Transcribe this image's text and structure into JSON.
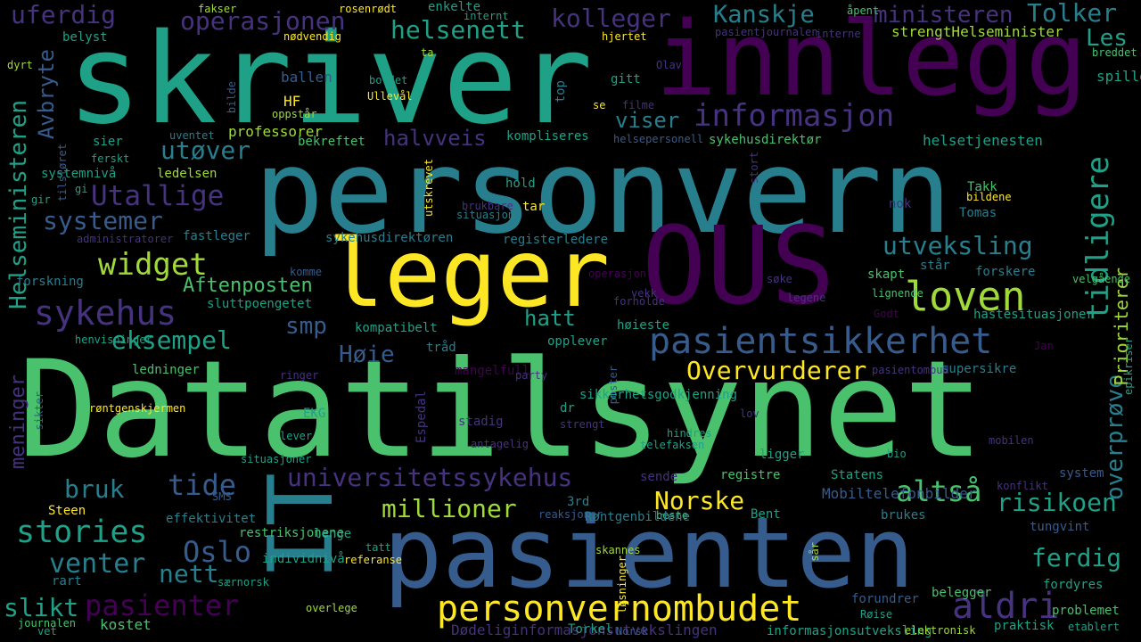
{
  "colors": {
    "background": "#000000",
    "viridis": [
      "#440154",
      "#46327e",
      "#365c8d",
      "#277f8e",
      "#1fa187",
      "#4ac16d",
      "#a0da39",
      "#fde725"
    ]
  },
  "words": [
    "Datatilsynet",
    "personvern",
    "skriver",
    "innlegg",
    "pasienten",
    "OUS",
    "leger",
    "IT",
    "loven",
    "pasientsikkerhet",
    "personvernombudet",
    "altså",
    "aldri",
    "tidligere",
    "informasjon",
    "helsenett",
    "Kanskje",
    "ministeren",
    "uferdig",
    "operasjonen",
    "kolleger",
    "Tolker",
    "Les",
    "widget",
    "sykehus",
    "Utallige",
    "utøver",
    "systemer",
    "eksempel",
    "Helseministeren",
    "Avbryte",
    "meninger",
    "universitetssykehus",
    "millioner",
    "bruk",
    "tide",
    "stories",
    "Oslo",
    "venter",
    "nett",
    "pasienter",
    "slikt",
    "Norske",
    "risikoen",
    "ferdig",
    "utveksling",
    "overprøve",
    "Prioriterer",
    "Overvurderer",
    "halvveis",
    "viser",
    "smp",
    "Høie",
    "hatt",
    "Aftenposten",
    "rosenrødt",
    "fakser",
    "enkelte",
    "internt",
    "åpent",
    "belyst",
    "nødvendig",
    "hjertet",
    "strengtHelseminister",
    "pasientjournalen",
    "interne",
    "breddet",
    "dyrt",
    "spiller",
    "ta",
    "ballen",
    "bordet",
    "Ullevål",
    "top",
    "gitt",
    "Olav",
    "bilde",
    "filme",
    "HF",
    "se",
    "oppstår",
    "professorer",
    "kompliseres",
    "helsepersonell",
    "sykehusdirektør",
    "helsetjenesten",
    "sier",
    "uventet",
    "bekreftet",
    "tilsløret",
    "ferskt",
    "ledelsen",
    "systemnivå",
    "gi",
    "gir",
    "hold",
    "utskrevet",
    "brukbare",
    "situasjon",
    "Takk",
    "stort",
    "Tomas",
    "bildene",
    "nok",
    "tar",
    "administratorer",
    "fastleger",
    "sykehusdirektøren",
    "registerledere",
    "skapt",
    "står",
    "forskere",
    "komme",
    "forskning",
    "operasjon",
    "søke",
    "velgående",
    "sluttpoengetet",
    "vekk",
    "forholde",
    "legene",
    "lignende",
    "kompatibelt",
    "høieste",
    "Godt",
    "hastesituasjoner",
    "henvisninger",
    "tråd",
    "opplever",
    "Jan",
    "ledninger",
    "mangelfull",
    "party",
    "supersikre",
    "pasientombud",
    "ringer",
    "sikkerhetsgodkjenning",
    "poster",
    "epikriser",
    "sikter",
    "røntgenskjermen",
    "EKG",
    "dr",
    "strengt",
    "lov",
    "lever",
    "stadig",
    "Espedal",
    "hindres",
    "antagelig",
    "telefaksen",
    "mobilen",
    "situasjoner",
    "ligger",
    "bio",
    "sende",
    "registre",
    "Statens",
    "konflikt",
    "system",
    "SMS",
    "Mobiltelefonbilder",
    "3rd",
    "Steen",
    "effektivitet",
    "reaksjoner",
    "beste",
    "Røntgenbildene",
    "Bent",
    "brukes",
    "restriksjonene",
    "tatt",
    "lenge",
    "tungvint",
    "individnivå",
    "referanse",
    "skannes",
    "rart",
    "særnorsk",
    "løsninger",
    "sår",
    "forundrer",
    "fordyres",
    "belegger",
    "Røise",
    "problemet",
    "overlege",
    "journalen",
    "vet",
    "kostet",
    "Dødeliginformasjonsutvekslingen",
    "Torkel",
    "Norsk",
    "informasjonsutveksling",
    "elektronisk",
    "praktisk",
    "etablert",
    "Straks"
  ]
}
